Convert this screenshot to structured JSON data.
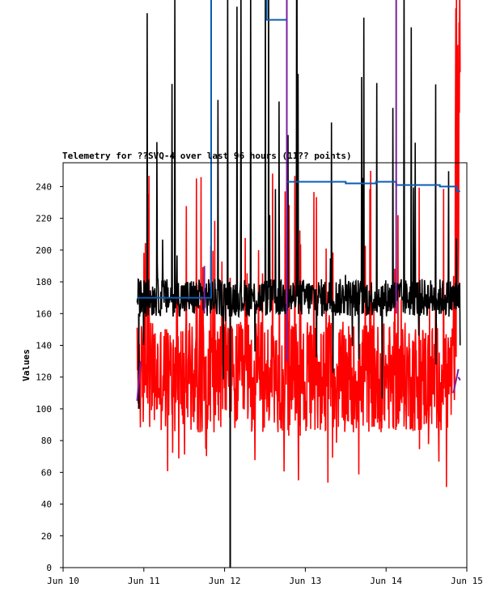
{
  "chart_data": {
    "type": "line",
    "title": "Telemetry for ??SVQ-4 over last 96 hours (11?? points)",
    "ylabel": "Values",
    "xlabel": "",
    "ylim": [
      0,
      255
    ],
    "yticks": [
      0,
      20,
      40,
      60,
      80,
      100,
      120,
      140,
      160,
      180,
      200,
      220,
      240
    ],
    "xlim": [
      "2024-06-10T00:00",
      "2024-06-15T00:00"
    ],
    "xticks": [
      "Jun 10",
      "Jun 11",
      "Jun 12",
      "Jun 13",
      "Jun 14",
      "Jun 15"
    ],
    "grid": false,
    "legend": "none",
    "data_start": "2024-06-10T22:00",
    "data_end": "2024-06-14T22:00",
    "series": [
      {
        "color": "#ff0000",
        "style": "noisy",
        "base": 120,
        "noise": 35,
        "spike_prob": 0.12,
        "spike_range": [
          50,
          250
        ],
        "points": 900,
        "tail_up_after": "2024-06-14T20:30"
      },
      {
        "color": "#000000",
        "style": "noisy",
        "base": 170,
        "noise": 12,
        "spike_prob": 0.05,
        "spike_range": [
          100,
          400
        ],
        "points": 900,
        "end_value": 140,
        "special": [
          {
            "at": "2024-06-12T01:40",
            "value": 0
          },
          {
            "at": "2024-06-10T22:30",
            "value": 100
          }
        ]
      },
      {
        "color": "#0a5cb3",
        "style": "step",
        "steps": [
          {
            "x": "2024-06-10T22:00",
            "y": 170
          },
          {
            "x": "2024-06-11T20:00",
            "y": 390
          },
          {
            "x": "2024-06-11T20:50",
            "y": 388
          },
          {
            "x": "2024-06-12T01:00",
            "y": 385
          },
          {
            "x": "2024-06-12T05:00",
            "y": 383
          },
          {
            "x": "2024-06-12T12:30",
            "y": 345
          },
          {
            "x": "2024-06-12T18:30",
            "y": 243
          },
          {
            "x": "2024-06-13T12:00",
            "y": 242
          },
          {
            "x": "2024-06-13T21:00",
            "y": 243
          },
          {
            "x": "2024-06-14T03:00",
            "y": 241
          },
          {
            "x": "2024-06-14T16:00",
            "y": 240
          },
          {
            "x": "2024-06-14T21:00",
            "y": 237
          },
          {
            "x": "2024-06-14T22:00",
            "y": 237
          }
        ]
      },
      {
        "color": "#7a1fa0",
        "style": "sparse",
        "segments": [
          {
            "x": [
              "2024-06-10T22:00",
              "2024-06-10T23:00"
            ],
            "y": [
              105,
              130
            ]
          },
          {
            "x": [
              "2024-06-11T18:00",
              "2024-06-11T18:00"
            ],
            "y": [
              160,
              190
            ]
          },
          {
            "x": [
              "2024-06-12T18:30",
              "2024-06-12T18:30"
            ],
            "y": [
              130,
              400
            ]
          },
          {
            "x": [
              "2024-06-14T03:00",
              "2024-06-14T03:00"
            ],
            "y": [
              160,
              400
            ]
          },
          {
            "x": [
              "2024-06-14T20:00",
              "2024-06-14T21:30"
            ],
            "y": [
              110,
              125
            ]
          },
          {
            "x": [
              "2024-06-14T21:30",
              "2024-06-14T22:00"
            ],
            "y": [
              120,
              118
            ]
          }
        ]
      }
    ]
  }
}
